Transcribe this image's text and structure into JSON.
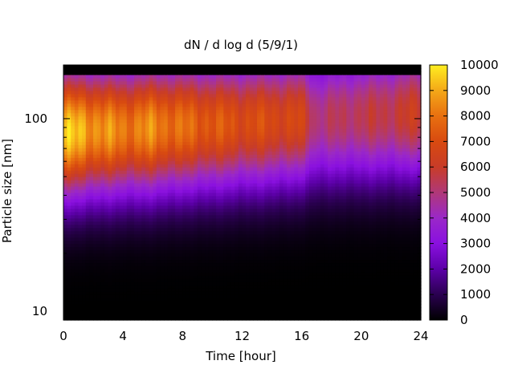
{
  "chart_data": {
    "type": "heatmap",
    "title": "dN / d log d (5/9/1)",
    "xlabel": "Time [hour]",
    "ylabel": "Particle size [nm]",
    "xlim": [
      0,
      24
    ],
    "ylim": [
      9,
      190
    ],
    "yscale": "log",
    "x_ticks": [
      0,
      4,
      8,
      12,
      16,
      20,
      24
    ],
    "x_tick_labels": [
      "0",
      "4",
      "8",
      "12",
      "16",
      "20",
      "24"
    ],
    "y_ticks": [
      10,
      100
    ],
    "y_tick_labels": [
      "10",
      "100"
    ],
    "colorbar": {
      "min": 0,
      "max": 10000,
      "ticks": [
        0,
        1000,
        2000,
        3000,
        4000,
        5000,
        6000,
        7000,
        8000,
        9000,
        10000
      ],
      "tick_labels": [
        "0",
        "1000",
        "2000",
        "3000",
        "4000",
        "5000",
        "6000",
        "7000",
        "8000",
        "9000",
        "10000"
      ],
      "colormap": [
        "#000000",
        "#2a0050",
        "#5c00a8",
        "#8a10e0",
        "#9a28c8",
        "#b03878",
        "#c83c28",
        "#d84a10",
        "#e87010",
        "#f4a818",
        "#ffee20"
      ]
    },
    "peak_diameter_nm": {
      "x": [
        0,
        2,
        4,
        6,
        8,
        10,
        12,
        14,
        16,
        17,
        18,
        20,
        22,
        24
      ],
      "values": [
        85,
        87,
        88,
        90,
        92,
        93,
        95,
        97,
        100,
        100,
        102,
        104,
        106,
        108
      ]
    },
    "peak_concentration": {
      "x": [
        0,
        2,
        4,
        6,
        8,
        10,
        12,
        14,
        16,
        17,
        18,
        20,
        22,
        24
      ],
      "values": [
        9500,
        8800,
        8200,
        8400,
        7800,
        7400,
        7000,
        6900,
        6600,
        5000,
        5200,
        5500,
        5700,
        6200
      ]
    },
    "grid": false,
    "legend": "colorbar-right"
  }
}
